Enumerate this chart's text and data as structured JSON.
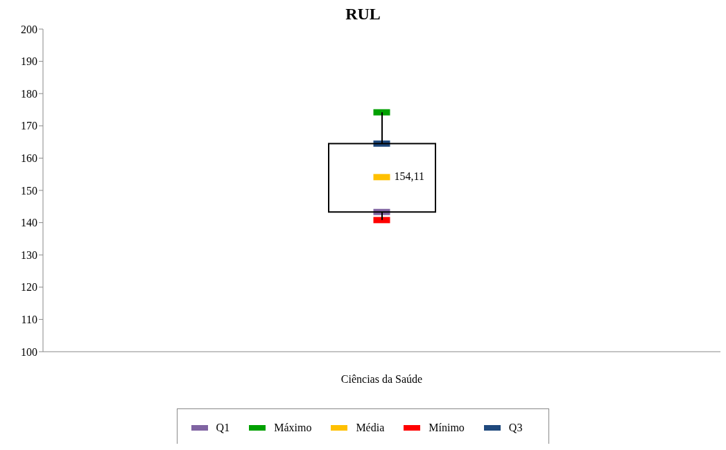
{
  "chart_data": {
    "type": "candlestick",
    "title": "RUL",
    "categories": [
      "Ciências da Saúde"
    ],
    "ohlc": [
      [
        143.3,
        174.2,
        140.8,
        164.5
      ]
    ],
    "ylim": [
      100,
      200
    ],
    "yticks": [
      100,
      110,
      120,
      130,
      140,
      150,
      160,
      170,
      180,
      190,
      200
    ],
    "legend": "bottom",
    "marker": "square",
    "series": [
      {
        "name": "Q1",
        "type": "scatter",
        "color": "#8064a2",
        "values": [
          143.3
        ]
      },
      {
        "name": "Máximo",
        "type": "scatter",
        "color": "#00a000",
        "values": [
          174.2
        ]
      },
      {
        "name": "Média",
        "type": "scatter",
        "color": "#ffc000",
        "values": [
          154.11
        ],
        "value_labels": [
          "154,11"
        ]
      },
      {
        "name": "Mínimo",
        "type": "scatter",
        "color": "#ff0000",
        "values": [
          140.8
        ]
      },
      {
        "name": "Q3",
        "type": "scatter",
        "color": "#1f497d",
        "values": [
          164.5
        ]
      }
    ]
  }
}
